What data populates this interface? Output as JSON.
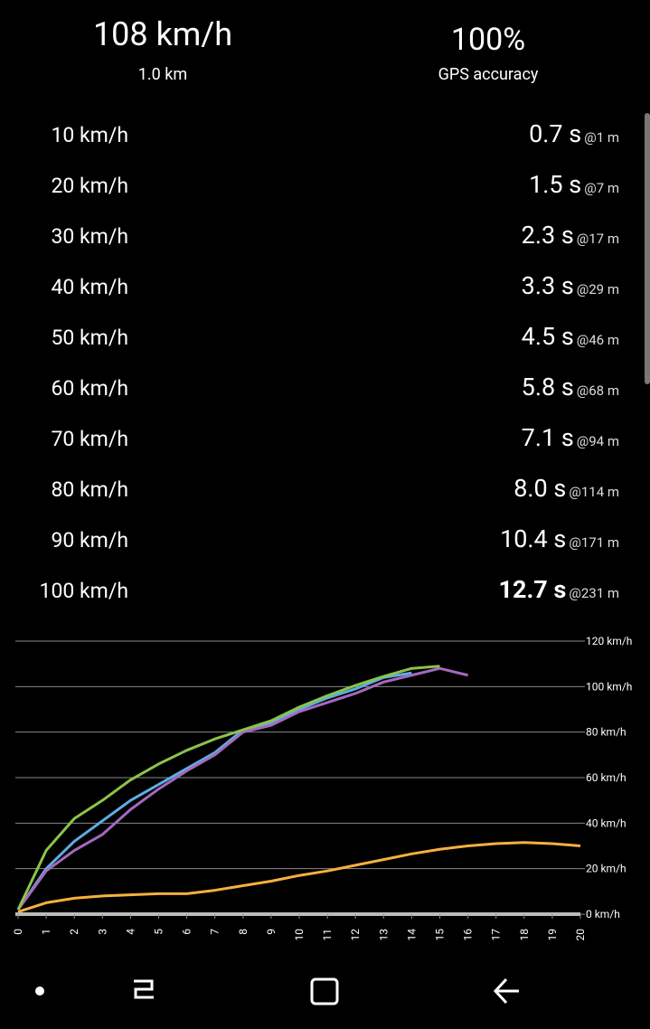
{
  "header": {
    "speed": "108 km/h",
    "distance": "1.0 km",
    "accuracy": "100%",
    "accuracy_label": "GPS accuracy"
  },
  "splits": [
    {
      "speed": "10 km/h",
      "time": "0.7 s",
      "distance": "@1 m"
    },
    {
      "speed": "20 km/h",
      "time": "1.5 s",
      "distance": "@7 m"
    },
    {
      "speed": "30 km/h",
      "time": "2.3 s",
      "distance": "@17 m"
    },
    {
      "speed": "40 km/h",
      "time": "3.3 s",
      "distance": "@29 m"
    },
    {
      "speed": "50 km/h",
      "time": "4.5 s",
      "distance": "@46 m"
    },
    {
      "speed": "60 km/h",
      "time": "5.8 s",
      "distance": "@68 m"
    },
    {
      "speed": "70 km/h",
      "time": "7.1 s",
      "distance": "@94 m"
    },
    {
      "speed": "80 km/h",
      "time": "8.0 s",
      "distance": "@114 m"
    },
    {
      "speed": "90 km/h",
      "time": "10.4 s",
      "distance": "@171 m"
    },
    {
      "speed": "100 km/h",
      "time": "12.7 s",
      "distance": "@231 m"
    }
  ],
  "chart_data": {
    "type": "line",
    "xlim": [
      0,
      20
    ],
    "xticks": [
      0,
      1,
      2,
      3,
      4,
      5,
      6,
      7,
      8,
      9,
      10,
      11,
      12,
      13,
      14,
      15,
      16,
      17,
      18,
      19,
      20
    ],
    "ylim": [
      0,
      120
    ],
    "yticks": [
      {
        "value": 0,
        "label": "0 km/h"
      },
      {
        "value": 20,
        "label": "20 km/h"
      },
      {
        "value": 40,
        "label": "40 km/h"
      },
      {
        "value": 60,
        "label": "60 km/h"
      },
      {
        "value": 80,
        "label": "80 km/h"
      },
      {
        "value": 100,
        "label": "100 km/h"
      },
      {
        "value": 120,
        "label": "120 km/h"
      }
    ],
    "grid": true,
    "series": [
      {
        "color": "#f5b041",
        "x": [
          0,
          1,
          2,
          3,
          4,
          5,
          6,
          7,
          8,
          9,
          10,
          11,
          12,
          13,
          14,
          15,
          16,
          17,
          18,
          19,
          20
        ],
        "values": [
          1,
          5,
          7,
          8,
          8.5,
          9,
          9,
          10.5,
          12.5,
          14.5,
          17,
          19,
          21.5,
          24,
          26.5,
          28.5,
          30,
          31,
          31.5,
          31,
          30
        ]
      },
      {
        "color": "#5dade2",
        "x": [
          0,
          1,
          2,
          3,
          4,
          5,
          6,
          7,
          8,
          9,
          10,
          11,
          12,
          13,
          14
        ],
        "values": [
          2,
          20,
          32,
          41,
          50,
          57,
          64,
          71,
          81,
          84,
          90,
          95,
          99,
          104,
          106
        ]
      },
      {
        "color": "#a569bd",
        "x": [
          0,
          1,
          2,
          3,
          4,
          5,
          6,
          7,
          8,
          9,
          10,
          11,
          12,
          13,
          14,
          15,
          16
        ],
        "values": [
          2,
          19,
          28,
          35,
          46,
          55,
          63,
          70,
          80,
          83,
          89,
          93,
          97,
          102,
          105,
          108,
          105
        ]
      },
      {
        "color": "#8bc34a",
        "x": [
          0,
          1,
          2,
          3,
          4,
          5,
          6,
          7,
          8,
          9,
          10,
          11,
          12,
          13,
          14,
          15
        ],
        "values": [
          2,
          28,
          42,
          50,
          59,
          66,
          72,
          77,
          81,
          85,
          91,
          96,
          100.5,
          104.5,
          108,
          109
        ]
      }
    ]
  }
}
